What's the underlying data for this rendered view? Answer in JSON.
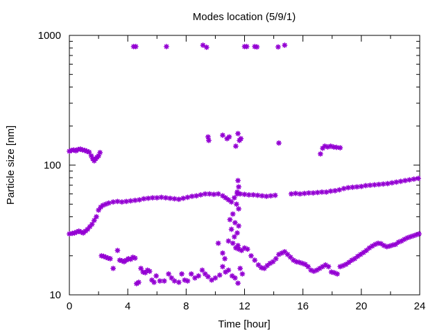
{
  "chart_data": {
    "type": "scatter",
    "title": "Modes location (5/9/1)",
    "xlabel": "Time [hour]",
    "ylabel": "Particle size [nm]",
    "xlim": [
      0,
      24
    ],
    "ylim": [
      10,
      1000
    ],
    "y_scale": "log",
    "x_ticks": [
      "0",
      "4",
      "8",
      "12",
      "16",
      "20",
      "24"
    ],
    "y_ticks": [
      "10",
      "100",
      "1000"
    ],
    "marker": "asterisk",
    "grid": false,
    "legend": false,
    "colors": {
      "points": "#9400d3",
      "axis": "#000000",
      "background": "#ffffff"
    },
    "series": [
      {
        "points": [
          [
            4.4,
            820
          ],
          [
            4.55,
            820
          ],
          [
            6.65,
            820
          ],
          [
            9.15,
            840
          ],
          [
            9.4,
            810
          ],
          [
            12.0,
            820
          ],
          [
            12.15,
            820
          ],
          [
            12.7,
            820
          ],
          [
            12.85,
            815
          ],
          [
            14.3,
            815
          ],
          [
            14.75,
            840
          ],
          [
            9.5,
            165
          ],
          [
            9.55,
            155
          ],
          [
            10.5,
            170
          ],
          [
            10.8,
            160
          ],
          [
            10.95,
            165
          ],
          [
            11.4,
            140
          ],
          [
            11.55,
            175
          ],
          [
            11.65,
            155
          ],
          [
            11.75,
            160
          ],
          [
            14.35,
            148
          ],
          [
            17.2,
            122
          ],
          [
            17.35,
            135
          ],
          [
            17.5,
            140
          ],
          [
            17.7,
            138
          ],
          [
            17.9,
            140
          ],
          [
            18.1,
            138
          ],
          [
            18.3,
            137
          ],
          [
            18.55,
            136
          ],
          [
            0.0,
            128
          ],
          [
            0.15,
            130
          ],
          [
            0.3,
            131
          ],
          [
            0.45,
            129
          ],
          [
            0.6,
            132
          ],
          [
            0.75,
            133
          ],
          [
            0.9,
            131
          ],
          [
            1.05,
            130
          ],
          [
            1.2,
            128
          ],
          [
            1.35,
            126
          ],
          [
            1.5,
            118
          ],
          [
            1.6,
            112
          ],
          [
            1.7,
            108
          ],
          [
            1.8,
            112
          ],
          [
            1.9,
            115
          ],
          [
            2.0,
            118
          ],
          [
            2.1,
            125
          ],
          [
            0.0,
            29.5
          ],
          [
            0.2,
            29.8
          ],
          [
            0.35,
            30.0
          ],
          [
            0.5,
            30.5
          ],
          [
            0.65,
            31.0
          ],
          [
            0.8,
            30.5
          ],
          [
            0.95,
            30.0
          ],
          [
            1.1,
            31.0
          ],
          [
            1.25,
            32.0
          ],
          [
            1.4,
            33.5
          ],
          [
            1.55,
            35.0
          ],
          [
            1.7,
            37.5
          ],
          [
            1.85,
            40.0
          ],
          [
            2.0,
            45.0
          ],
          [
            2.15,
            47.5
          ],
          [
            2.3,
            49.0
          ],
          [
            2.5,
            50.0
          ],
          [
            2.7,
            51.0
          ],
          [
            3.0,
            52.0
          ],
          [
            3.3,
            52.5
          ],
          [
            3.6,
            52.0
          ],
          [
            3.9,
            52.5
          ],
          [
            4.2,
            53.0
          ],
          [
            4.5,
            53.5
          ],
          [
            4.8,
            54.0
          ],
          [
            5.1,
            55.0
          ],
          [
            5.4,
            55.5
          ],
          [
            5.7,
            56.0
          ],
          [
            6.0,
            56.0
          ],
          [
            6.3,
            56.5
          ],
          [
            6.6,
            56.0
          ],
          [
            6.9,
            55.5
          ],
          [
            7.2,
            55.0
          ],
          [
            7.5,
            54.5
          ],
          [
            7.8,
            55.5
          ],
          [
            8.1,
            56.5
          ],
          [
            8.4,
            57.5
          ],
          [
            8.7,
            58.0
          ],
          [
            9.0,
            59.0
          ],
          [
            9.3,
            60.0
          ],
          [
            9.6,
            60.0
          ],
          [
            9.9,
            59.5
          ],
          [
            10.2,
            60.0
          ],
          [
            10.5,
            58.0
          ],
          [
            10.7,
            56.0
          ],
          [
            10.9,
            54.0
          ],
          [
            11.1,
            52.0
          ],
          [
            11.3,
            56.0
          ],
          [
            11.5,
            62.0
          ],
          [
            11.7,
            60.0
          ],
          [
            12.0,
            59.5
          ],
          [
            12.3,
            59.0
          ],
          [
            12.6,
            59.0
          ],
          [
            12.9,
            58.5
          ],
          [
            13.2,
            58.0
          ],
          [
            13.5,
            57.5
          ],
          [
            13.8,
            58.0
          ],
          [
            14.1,
            58.5
          ],
          [
            15.2,
            60.0
          ],
          [
            15.5,
            60.5
          ],
          [
            15.8,
            60.0
          ],
          [
            16.1,
            60.5
          ],
          [
            16.4,
            61.0
          ],
          [
            16.7,
            61.0
          ],
          [
            17.0,
            61.5
          ],
          [
            17.3,
            62.0
          ],
          [
            17.6,
            62.0
          ],
          [
            17.9,
            63.0
          ],
          [
            18.2,
            63.5
          ],
          [
            18.5,
            64.5
          ],
          [
            18.8,
            66.0
          ],
          [
            19.1,
            67.0
          ],
          [
            19.4,
            67.5
          ],
          [
            19.7,
            68.0
          ],
          [
            20.0,
            68.5
          ],
          [
            20.3,
            69.5
          ],
          [
            20.6,
            70.0
          ],
          [
            20.9,
            70.5
          ],
          [
            21.2,
            71.0
          ],
          [
            21.5,
            71.5
          ],
          [
            21.8,
            72.0
          ],
          [
            22.1,
            73.0
          ],
          [
            22.4,
            74.0
          ],
          [
            22.7,
            75.0
          ],
          [
            23.0,
            76.0
          ],
          [
            23.3,
            77.0
          ],
          [
            23.6,
            78.0
          ],
          [
            23.9,
            79.0
          ],
          [
            11.55,
            76
          ],
          [
            11.6,
            68
          ],
          [
            11.5,
            60
          ],
          [
            11.45,
            50
          ],
          [
            11.6,
            46
          ],
          [
            11.2,
            42
          ],
          [
            11.0,
            38
          ],
          [
            11.35,
            36
          ],
          [
            11.6,
            34
          ],
          [
            11.1,
            32
          ],
          [
            11.5,
            30
          ],
          [
            11.3,
            28
          ],
          [
            10.9,
            26
          ],
          [
            11.2,
            25
          ],
          [
            11.55,
            24
          ],
          [
            2.2,
            20.0
          ],
          [
            2.35,
            19.8
          ],
          [
            2.5,
            19.5
          ],
          [
            2.65,
            19.2
          ],
          [
            2.8,
            19.0
          ],
          [
            3.0,
            16.0
          ],
          [
            3.3,
            22.0
          ],
          [
            3.45,
            18.5
          ],
          [
            3.6,
            18.3
          ],
          [
            3.75,
            18.0
          ],
          [
            3.9,
            18.5
          ],
          [
            4.05,
            19.0
          ],
          [
            4.2,
            18.8
          ],
          [
            4.35,
            19.5
          ],
          [
            4.5,
            19.2
          ],
          [
            4.6,
            12.2
          ],
          [
            4.75,
            12.5
          ],
          [
            4.9,
            16.0
          ],
          [
            5.05,
            15.0
          ],
          [
            5.2,
            14.8
          ],
          [
            5.35,
            15.5
          ],
          [
            5.5,
            15.2
          ],
          [
            5.65,
            13.0
          ],
          [
            5.8,
            12.5
          ],
          [
            5.95,
            14.0
          ],
          [
            6.2,
            12.8
          ],
          [
            6.5,
            12.8
          ],
          [
            6.8,
            14.5
          ],
          [
            7.0,
            13.5
          ],
          [
            7.2,
            12.8
          ],
          [
            7.5,
            12.5
          ],
          [
            7.7,
            14.5
          ],
          [
            7.9,
            13.0
          ],
          [
            8.1,
            12.8
          ],
          [
            8.35,
            14.5
          ],
          [
            8.6,
            13.5
          ],
          [
            8.85,
            14.0
          ],
          [
            9.1,
            15.5
          ],
          [
            9.3,
            14.5
          ],
          [
            9.5,
            13.8
          ],
          [
            9.75,
            13.0
          ],
          [
            10.0,
            13.5
          ],
          [
            10.3,
            14.2
          ],
          [
            10.5,
            16.5
          ],
          [
            10.7,
            15.0
          ],
          [
            10.9,
            15.5
          ],
          [
            11.15,
            14.0
          ],
          [
            11.35,
            13.5
          ],
          [
            11.55,
            12.3
          ],
          [
            11.85,
            14.5
          ],
          [
            11.7,
            16.0
          ],
          [
            10.2,
            25.0
          ],
          [
            10.5,
            21.0
          ],
          [
            10.65,
            19.0
          ],
          [
            11.4,
            23.0
          ],
          [
            11.6,
            22.5
          ],
          [
            11.8,
            22.0
          ],
          [
            12.0,
            23.0
          ],
          [
            12.2,
            22.5
          ],
          [
            12.45,
            20.0
          ],
          [
            12.7,
            18.5
          ],
          [
            12.95,
            17.0
          ],
          [
            13.15,
            16.2
          ],
          [
            13.35,
            16.0
          ],
          [
            13.55,
            16.8
          ],
          [
            13.75,
            17.5
          ],
          [
            13.95,
            18.0
          ],
          [
            14.15,
            19.0
          ],
          [
            14.35,
            20.5
          ],
          [
            14.55,
            21.0
          ],
          [
            14.75,
            21.5
          ],
          [
            14.95,
            20.5
          ],
          [
            15.15,
            19.5
          ],
          [
            15.35,
            18.5
          ],
          [
            15.55,
            18.0
          ],
          [
            15.75,
            17.8
          ],
          [
            15.95,
            17.5
          ],
          [
            16.15,
            17.2
          ],
          [
            16.35,
            16.5
          ],
          [
            16.55,
            15.5
          ],
          [
            16.75,
            15.2
          ],
          [
            16.95,
            15.5
          ],
          [
            17.15,
            16.0
          ],
          [
            17.35,
            16.5
          ],
          [
            17.55,
            17.0
          ],
          [
            17.75,
            16.5
          ],
          [
            17.95,
            15.0
          ],
          [
            18.15,
            14.8
          ],
          [
            18.35,
            14.5
          ],
          [
            18.55,
            16.5
          ],
          [
            18.75,
            16.8
          ],
          [
            18.95,
            17.2
          ],
          [
            19.15,
            17.8
          ],
          [
            19.35,
            18.5
          ],
          [
            19.55,
            19.0
          ],
          [
            19.75,
            19.8
          ],
          [
            19.95,
            20.5
          ],
          [
            20.15,
            21.2
          ],
          [
            20.35,
            22.0
          ],
          [
            20.55,
            23.0
          ],
          [
            20.75,
            23.8
          ],
          [
            20.95,
            24.5
          ],
          [
            21.15,
            25.0
          ],
          [
            21.35,
            24.8
          ],
          [
            21.55,
            24.0
          ],
          [
            21.75,
            23.5
          ],
          [
            21.95,
            23.8
          ],
          [
            22.15,
            24.2
          ],
          [
            22.35,
            24.5
          ],
          [
            22.55,
            25.5
          ],
          [
            22.75,
            26.0
          ],
          [
            22.95,
            26.8
          ],
          [
            23.15,
            27.5
          ],
          [
            23.35,
            28.0
          ],
          [
            23.55,
            28.5
          ],
          [
            23.75,
            29.0
          ],
          [
            23.95,
            29.5
          ]
        ]
      }
    ]
  }
}
